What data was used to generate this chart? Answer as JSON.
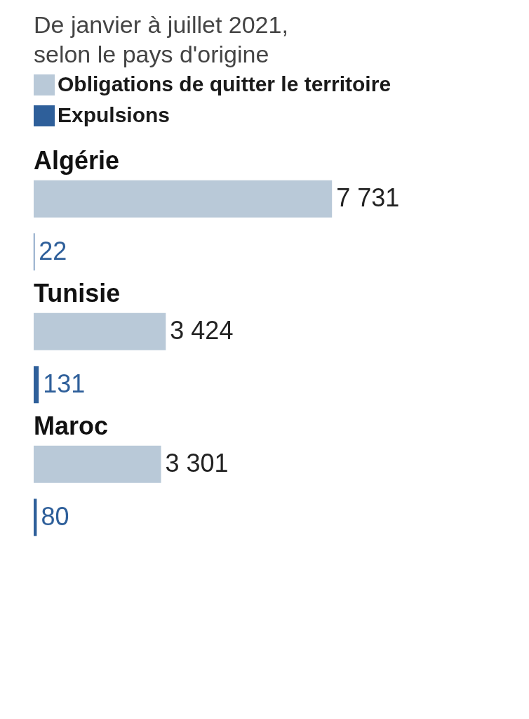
{
  "chart_data": {
    "type": "bar",
    "orientation": "horizontal",
    "subtitle": "De janvier à juillet 2021, selon le pays d'origine",
    "categories": [
      "Algérie",
      "Tunisie",
      "Maroc"
    ],
    "series": [
      {
        "name": "Obligations de quitter le territoire",
        "color": "#b9c9d8",
        "values": [
          7731,
          3424,
          3301
        ],
        "value_labels": [
          "7 731",
          "3 424",
          "3 301"
        ]
      },
      {
        "name": "Expulsions",
        "color": "#2e5f9a",
        "values": [
          22,
          131,
          80
        ],
        "value_labels": [
          "22",
          "131",
          "80"
        ]
      }
    ],
    "legend": "top"
  }
}
